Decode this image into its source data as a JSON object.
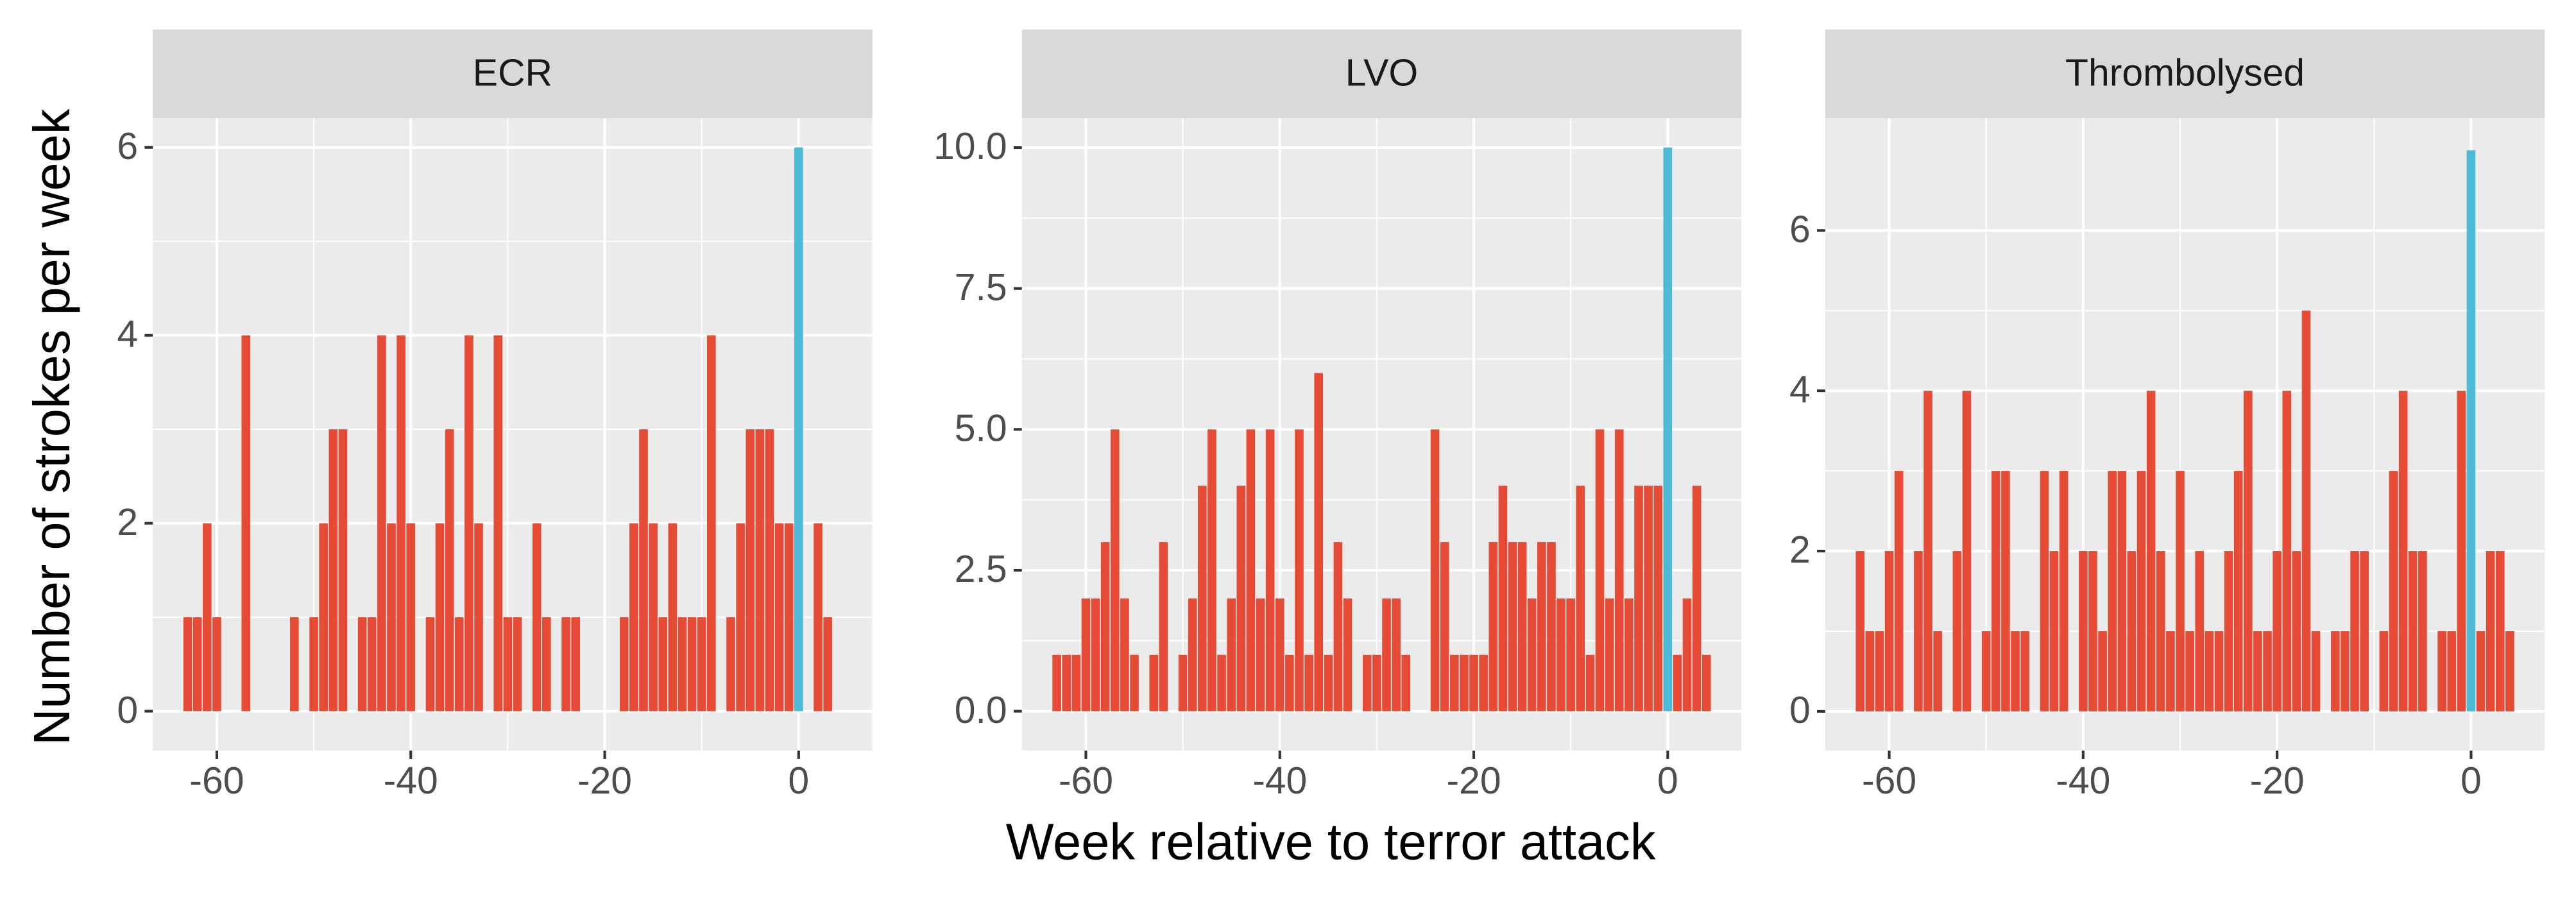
{
  "labels": {
    "x_label": "Week relative to terror attack",
    "y_label": "Number of strokes per week"
  },
  "chart_data": [
    {
      "type": "bar",
      "title": "ECR",
      "x": [
        -63,
        -62,
        -61,
        -60,
        -59,
        -58,
        -57,
        -56,
        -55,
        -54,
        -53,
        -52,
        -51,
        -50,
        -49,
        -48,
        -47,
        -46,
        -45,
        -44,
        -43,
        -42,
        -41,
        -40,
        -39,
        -38,
        -37,
        -36,
        -35,
        -34,
        -33,
        -32,
        -31,
        -30,
        -29,
        -28,
        -27,
        -26,
        -25,
        -24,
        -23,
        -22,
        -21,
        -20,
        -19,
        -18,
        -17,
        -16,
        -15,
        -14,
        -13,
        -12,
        -11,
        -10,
        -9,
        -8,
        -7,
        -6,
        -5,
        -4,
        -3,
        -2,
        -1,
        0,
        1,
        2,
        3,
        4
      ],
      "values": [
        1,
        1,
        2,
        1,
        0,
        0,
        4,
        0,
        0,
        0,
        0,
        1,
        0,
        1,
        2,
        3,
        3,
        0,
        1,
        1,
        4,
        2,
        4,
        2,
        0,
        1,
        2,
        3,
        1,
        4,
        2,
        0,
        4,
        1,
        1,
        0,
        2,
        1,
        0,
        1,
        1,
        0,
        0,
        0,
        0,
        1,
        2,
        3,
        2,
        1,
        2,
        1,
        1,
        1,
        4,
        0,
        1,
        2,
        3,
        3,
        3,
        2,
        2,
        6,
        0,
        2,
        1,
        0
      ],
      "color": "#E64B35",
      "highlight": {
        "x": 0,
        "color": "#4DBBD5"
      },
      "xlim": [
        -66.6,
        7.6
      ],
      "xticks": [
        -60,
        -40,
        -20,
        0
      ],
      "ylim": [
        -0.42,
        6.31
      ],
      "yticks": [
        0,
        2,
        4,
        6
      ],
      "grid": true
    },
    {
      "type": "bar",
      "title": "LVO",
      "x": [
        -63,
        -62,
        -61,
        -60,
        -59,
        -58,
        -57,
        -56,
        -55,
        -54,
        -53,
        -52,
        -51,
        -50,
        -49,
        -48,
        -47,
        -46,
        -45,
        -44,
        -43,
        -42,
        -41,
        -40,
        -39,
        -38,
        -37,
        -36,
        -35,
        -34,
        -33,
        -32,
        -31,
        -30,
        -29,
        -28,
        -27,
        -26,
        -25,
        -24,
        -23,
        -22,
        -21,
        -20,
        -19,
        -18,
        -17,
        -16,
        -15,
        -14,
        -13,
        -12,
        -11,
        -10,
        -9,
        -8,
        -7,
        -6,
        -5,
        -4,
        -3,
        -2,
        -1,
        0,
        1,
        2,
        3,
        4
      ],
      "values": [
        1,
        1,
        1,
        2,
        2,
        3,
        5,
        2,
        1,
        0,
        1,
        3,
        0,
        1,
        2,
        4,
        5,
        1,
        2,
        4,
        5,
        2,
        5,
        2,
        1,
        5,
        1,
        6,
        1,
        3,
        2,
        0,
        1,
        1,
        2,
        2,
        1,
        0,
        0,
        5,
        3,
        1,
        1,
        1,
        1,
        3,
        4,
        3,
        3,
        2,
        3,
        3,
        2,
        2,
        4,
        1,
        5,
        2,
        5,
        2,
        4,
        4,
        4,
        10,
        1,
        2,
        4,
        1
      ],
      "color": "#E64B35",
      "highlight": {
        "x": 0,
        "color": "#4DBBD5"
      },
      "xlim": [
        -66.6,
        7.6
      ],
      "xticks": [
        -60,
        -40,
        -20,
        0
      ],
      "ylim": [
        -0.7,
        10.52
      ],
      "yticks": [
        {
          "value": 0,
          "label": "0.0"
        },
        {
          "value": 2.5,
          "label": "2.5"
        },
        {
          "value": 5,
          "label": "5.0"
        },
        {
          "value": 7.5,
          "label": "7.5"
        },
        {
          "value": 10,
          "label": "10.0"
        }
      ],
      "grid": true
    },
    {
      "type": "bar",
      "title": "Thrombolysed",
      "x": [
        -63,
        -62,
        -61,
        -60,
        -59,
        -58,
        -57,
        -56,
        -55,
        -54,
        -53,
        -52,
        -51,
        -50,
        -49,
        -48,
        -47,
        -46,
        -45,
        -44,
        -43,
        -42,
        -41,
        -40,
        -39,
        -38,
        -37,
        -36,
        -35,
        -34,
        -33,
        -32,
        -31,
        -30,
        -29,
        -28,
        -27,
        -26,
        -25,
        -24,
        -23,
        -22,
        -21,
        -20,
        -19,
        -18,
        -17,
        -16,
        -15,
        -14,
        -13,
        -12,
        -11,
        -10,
        -9,
        -8,
        -7,
        -6,
        -5,
        -4,
        -3,
        -2,
        -1,
        0,
        1,
        2,
        3,
        4
      ],
      "values": [
        2,
        1,
        1,
        2,
        3,
        0,
        2,
        4,
        1,
        0,
        2,
        4,
        0,
        1,
        3,
        3,
        1,
        1,
        0,
        3,
        2,
        3,
        0,
        2,
        2,
        1,
        3,
        3,
        2,
        3,
        4,
        2,
        1,
        3,
        1,
        2,
        1,
        1,
        2,
        3,
        4,
        1,
        1,
        2,
        4,
        2,
        5,
        1,
        0,
        1,
        1,
        2,
        2,
        0,
        1,
        3,
        4,
        2,
        2,
        0,
        1,
        1,
        4,
        7,
        1,
        2,
        2,
        1
      ],
      "color": "#E64B35",
      "highlight": {
        "x": 0,
        "color": "#4DBBD5"
      },
      "xlim": [
        -66.6,
        7.6
      ],
      "xticks": [
        -60,
        -40,
        -20,
        0
      ],
      "ylim": [
        -0.49,
        7.4
      ],
      "yticks": [
        0,
        2,
        4,
        6
      ],
      "grid": true
    }
  ]
}
